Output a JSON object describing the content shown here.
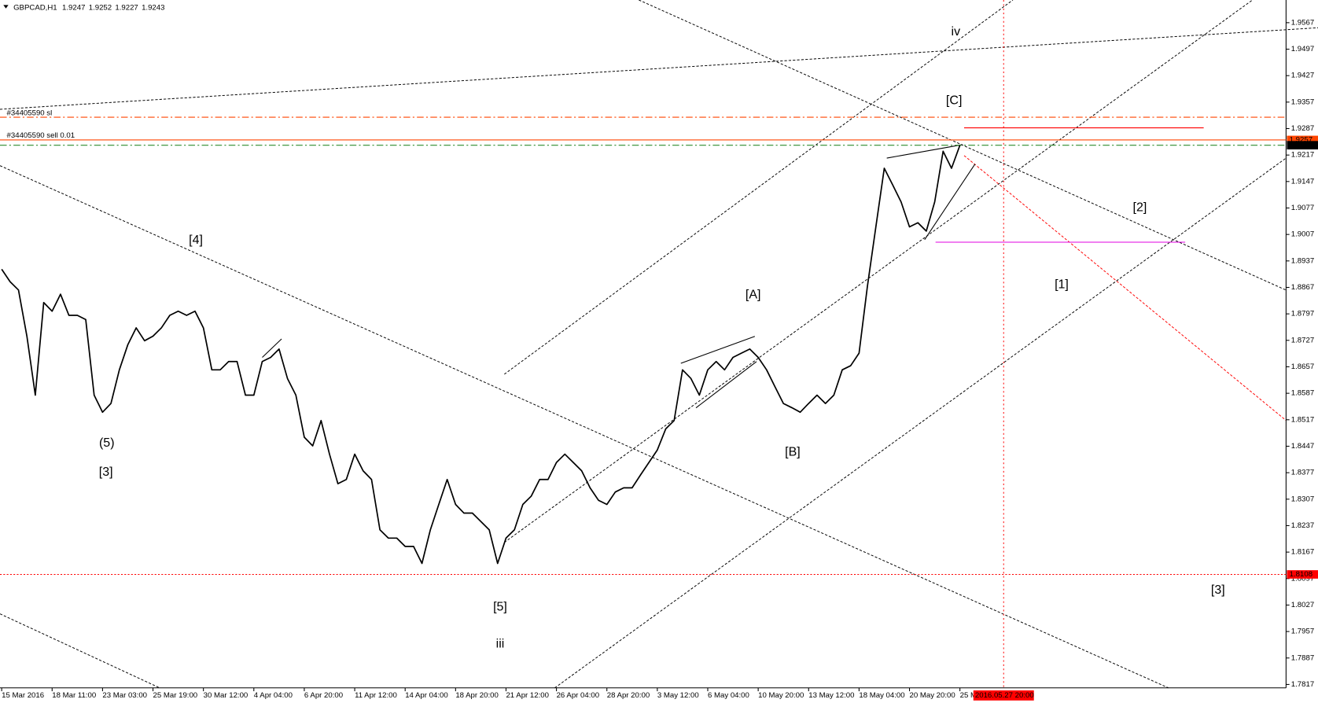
{
  "chart_data": {
    "type": "line",
    "symbol": "GBPCAD,H1",
    "ohlc": [
      1.9247,
      1.9252,
      1.9227,
      1.9243
    ],
    "categories": [
      "15 Mar 2016",
      null,
      null,
      null,
      null,
      null,
      "18 Mar 11:00",
      null,
      null,
      null,
      null,
      null,
      "23 Mar 03:00",
      null,
      null,
      null,
      null,
      null,
      "25 Mar 19:00",
      null,
      null,
      null,
      null,
      null,
      "30 Mar 12:00",
      null,
      null,
      null,
      null,
      null,
      "4 Apr 04:00",
      null,
      null,
      null,
      null,
      null,
      "6 Apr 20:00",
      null,
      null,
      null,
      null,
      null,
      "11 Apr 12:00",
      null,
      null,
      null,
      null,
      null,
      "14 Apr 04:00",
      null,
      null,
      null,
      null,
      null,
      "18 Apr 20:00",
      null,
      null,
      null,
      null,
      null,
      "21 Apr 12:00",
      null,
      null,
      null,
      null,
      null,
      "26 Apr 04:00",
      null,
      null,
      null,
      null,
      null,
      "28 Apr 20:00",
      null,
      null,
      null,
      null,
      null,
      "3 May 12:00",
      null,
      null,
      null,
      null,
      null,
      "6 May 04:00",
      null,
      null,
      null,
      null,
      null,
      "10 May 20:00",
      null,
      null,
      null,
      null,
      null,
      "13 May 12:00",
      null,
      null,
      null,
      null,
      null,
      "18 May 04:00",
      null,
      null,
      null,
      null,
      null,
      "20 May 20:00",
      null,
      null,
      null,
      null,
      null,
      "25 M"
    ],
    "series": [
      {
        "name": "GBPCAD",
        "color": "#000000",
        "values": [
          1.8915,
          1.8882,
          1.886,
          1.8738,
          1.8582,
          1.8827,
          1.8804,
          1.8849,
          1.8793,
          1.8793,
          1.8782,
          1.8582,
          1.8537,
          1.856,
          1.8649,
          1.8715,
          1.876,
          1.8726,
          1.8738,
          1.876,
          1.8793,
          1.8804,
          1.8793,
          1.8804,
          1.876,
          1.8649,
          1.8649,
          1.8671,
          1.8671,
          1.8582,
          1.8582,
          1.8671,
          1.8682,
          1.8704,
          1.8626,
          1.8582,
          1.8471,
          1.8448,
          1.8515,
          1.8426,
          1.8348,
          1.8359,
          1.8426,
          1.8382,
          1.8359,
          1.8226,
          1.8204,
          1.8204,
          1.8182,
          1.8182,
          1.8137,
          1.8226,
          1.8293,
          1.8359,
          1.8293,
          1.827,
          1.827,
          1.8248,
          1.8226,
          1.8137,
          1.8204,
          1.8226,
          1.8293,
          1.8315,
          1.8359,
          1.8359,
          1.8404,
          1.8426,
          1.8404,
          1.8382,
          1.8337,
          1.8304,
          1.8293,
          1.8326,
          1.8337,
          1.8337,
          1.8371,
          1.8404,
          1.8437,
          1.8493,
          1.8515,
          1.8649,
          1.8626,
          1.8582,
          1.8649,
          1.8671,
          1.8649,
          1.8682,
          1.8693,
          1.8704,
          1.8682,
          1.8649,
          1.8604,
          1.856,
          1.8549,
          1.8537,
          1.856,
          1.8582,
          1.856,
          1.8582,
          1.8649,
          1.866,
          1.8693,
          1.8871,
          1.9027,
          1.9182,
          1.9138,
          1.9093,
          1.9027,
          1.9038,
          1.9016,
          1.9093,
          1.9227,
          1.9182,
          1.9243
        ]
      }
    ],
    "ylim": [
      1.7808,
      1.9627
    ],
    "yticks": [
      1.9567,
      1.9497,
      1.9427,
      1.9357,
      1.9287,
      1.9217,
      1.9147,
      1.9077,
      1.9007,
      1.8937,
      1.8867,
      1.8797,
      1.8727,
      1.8657,
      1.8587,
      1.8517,
      1.8447,
      1.8377,
      1.8307,
      1.8237,
      1.8167,
      1.8097,
      1.8027,
      1.7957,
      1.7887,
      1.7817
    ],
    "hlines": [
      {
        "value": 1.9317,
        "label": "#34405590 sl",
        "color": "#ff4500",
        "style": "dashdot"
      },
      {
        "value": 1.9257,
        "label": "#34405590 sell 0.01",
        "color": "#ff4500",
        "style": "solid",
        "axis_label": true
      },
      {
        "value": 1.9243,
        "color": "#2e8b2e",
        "style": "dashdot",
        "axis_label": true,
        "axis_color": "#000000"
      },
      {
        "value": 1.8108,
        "color": "#ff0000",
        "style": "dotted",
        "axis_label": true
      }
    ],
    "vline_label": "2016.05.27 20:00",
    "annotations": [
      {
        "text": "iv",
        "color": "#0000ff"
      },
      {
        "text": "[C]",
        "color": "#ff0000"
      },
      {
        "text": "[4]",
        "color": "#ff0000"
      },
      {
        "text": "(5)",
        "color": "#008000"
      },
      {
        "text": "[3]",
        "color": "#ff0000"
      },
      {
        "text": "[A]",
        "color": "#ff0000"
      },
      {
        "text": "[B]",
        "color": "#ff0000"
      },
      {
        "text": "[5]",
        "color": "#ff0000"
      },
      {
        "text": "iii",
        "color": "#0000ff"
      },
      {
        "text": "[2]",
        "color": "#ff0000"
      },
      {
        "text": "[1]",
        "color": "#ff0000"
      },
      {
        "text": "[3]",
        "color": "#ff0000"
      }
    ]
  }
}
